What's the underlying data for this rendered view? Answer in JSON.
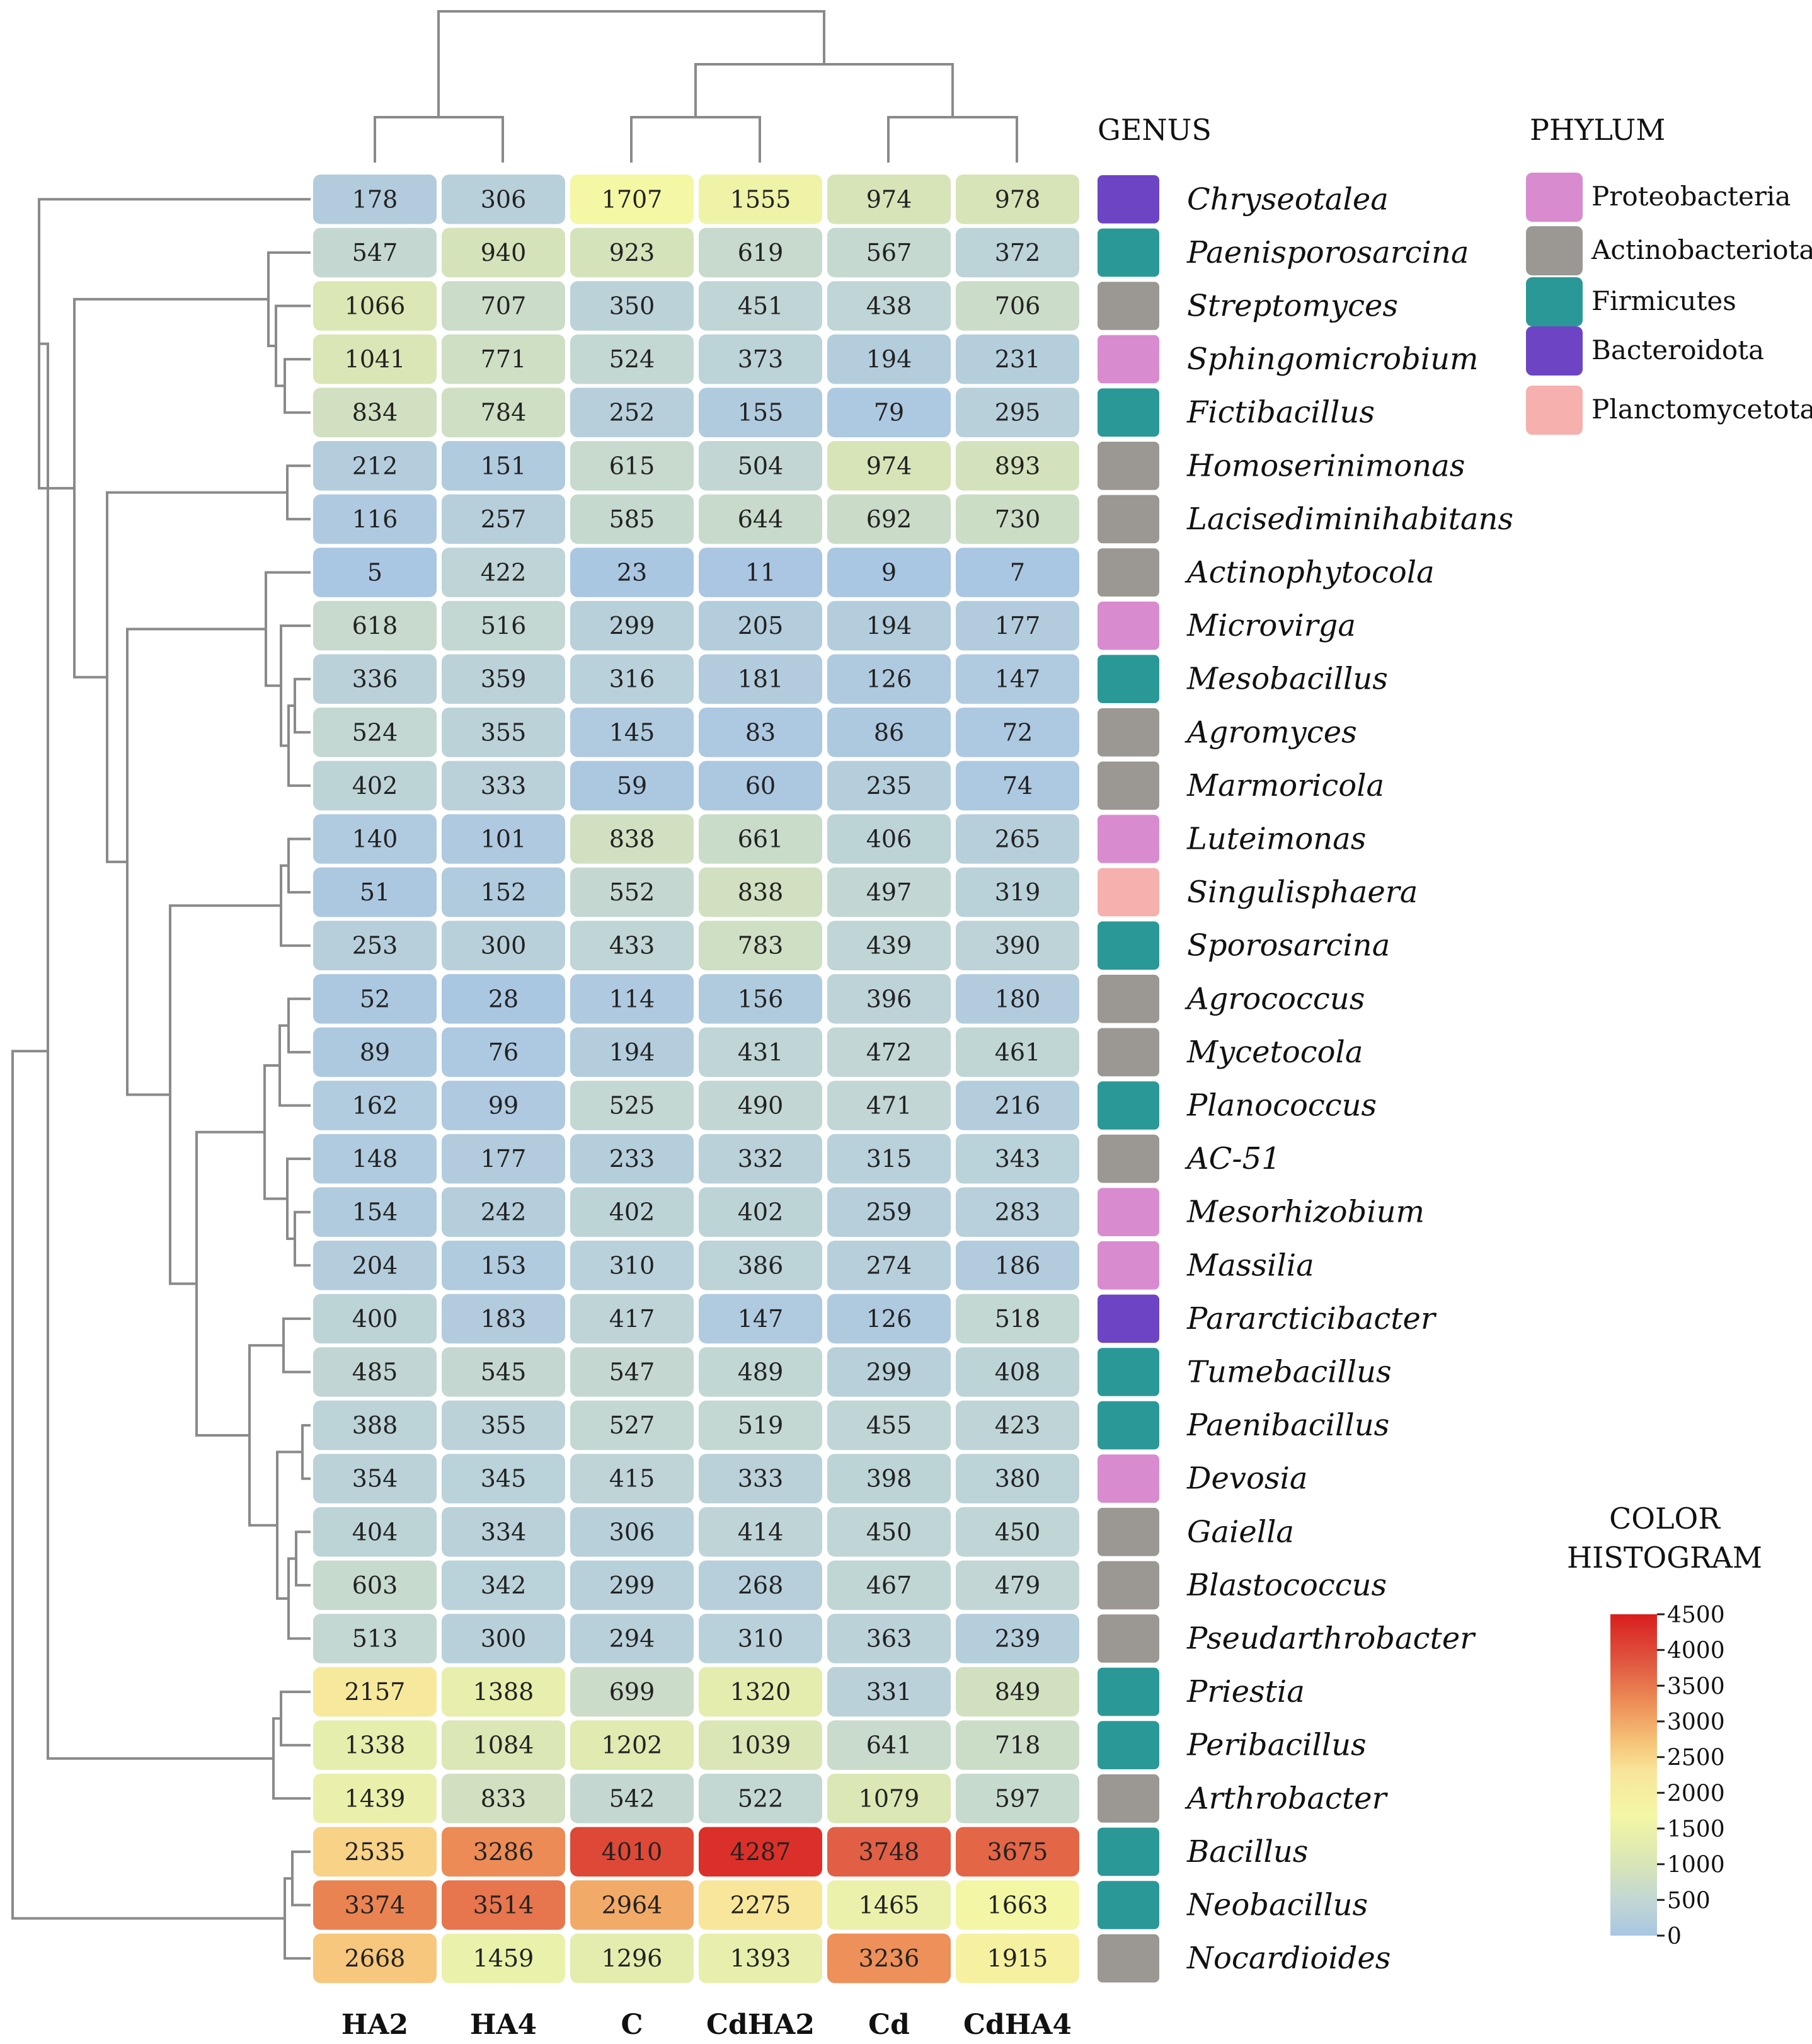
{
  "chart_data": {
    "type": "heatmap",
    "title": "",
    "columns": [
      "HA2",
      "HA4",
      "C",
      "CdHA2",
      "Cd",
      "CdHA4"
    ],
    "rows": [
      {
        "genus": "Chryseotalea",
        "phylum": "Bacteroidota",
        "values": [
          178,
          306,
          1707,
          1555,
          974,
          978
        ]
      },
      {
        "genus": "Paenisporosarcina",
        "phylum": "Firmicutes",
        "values": [
          547,
          940,
          923,
          619,
          567,
          372
        ]
      },
      {
        "genus": "Streptomyces",
        "phylum": "Actinobacteriota",
        "values": [
          1066,
          707,
          350,
          451,
          438,
          706
        ]
      },
      {
        "genus": "Sphingomicrobium",
        "phylum": "Proteobacteria",
        "values": [
          1041,
          771,
          524,
          373,
          194,
          231
        ]
      },
      {
        "genus": "Fictibacillus",
        "phylum": "Firmicutes",
        "values": [
          834,
          784,
          252,
          155,
          79,
          295
        ]
      },
      {
        "genus": "Homoserinimonas",
        "phylum": "Actinobacteriota",
        "values": [
          212,
          151,
          615,
          504,
          974,
          893
        ]
      },
      {
        "genus": "Lacisediminihabitans",
        "phylum": "Actinobacteriota",
        "values": [
          116,
          257,
          585,
          644,
          692,
          730
        ]
      },
      {
        "genus": "Actinophytocola",
        "phylum": "Actinobacteriota",
        "values": [
          5,
          422,
          23,
          11,
          9,
          7
        ]
      },
      {
        "genus": "Microvirga",
        "phylum": "Proteobacteria",
        "values": [
          618,
          516,
          299,
          205,
          194,
          177
        ]
      },
      {
        "genus": "Mesobacillus",
        "phylum": "Firmicutes",
        "values": [
          336,
          359,
          316,
          181,
          126,
          147
        ]
      },
      {
        "genus": "Agromyces",
        "phylum": "Actinobacteriota",
        "values": [
          524,
          355,
          145,
          83,
          86,
          72
        ]
      },
      {
        "genus": "Marmoricola",
        "phylum": "Actinobacteriota",
        "values": [
          402,
          333,
          59,
          60,
          235,
          74
        ]
      },
      {
        "genus": "Luteimonas",
        "phylum": "Proteobacteria",
        "values": [
          140,
          101,
          838,
          661,
          406,
          265
        ]
      },
      {
        "genus": "Singulisphaera",
        "phylum": "Planctomycetota",
        "values": [
          51,
          152,
          552,
          838,
          497,
          319
        ]
      },
      {
        "genus": "Sporosarcina",
        "phylum": "Firmicutes",
        "values": [
          253,
          300,
          433,
          783,
          439,
          390
        ]
      },
      {
        "genus": "Agrococcus",
        "phylum": "Actinobacteriota",
        "values": [
          52,
          28,
          114,
          156,
          396,
          180
        ]
      },
      {
        "genus": "Mycetocola",
        "phylum": "Actinobacteriota",
        "values": [
          89,
          76,
          194,
          431,
          472,
          461
        ]
      },
      {
        "genus": "Planococcus",
        "phylum": "Firmicutes",
        "values": [
          162,
          99,
          525,
          490,
          471,
          216
        ]
      },
      {
        "genus": "AC-51",
        "phylum": "Actinobacteriota",
        "values": [
          148,
          177,
          233,
          332,
          315,
          343
        ]
      },
      {
        "genus": "Mesorhizobium",
        "phylum": "Proteobacteria",
        "values": [
          154,
          242,
          402,
          402,
          259,
          283
        ]
      },
      {
        "genus": "Massilia",
        "phylum": "Proteobacteria",
        "values": [
          204,
          153,
          310,
          386,
          274,
          186
        ]
      },
      {
        "genus": "Pararcticibacter",
        "phylum": "Bacteroidota",
        "values": [
          400,
          183,
          417,
          147,
          126,
          518
        ]
      },
      {
        "genus": "Tumebacillus",
        "phylum": "Firmicutes",
        "values": [
          485,
          545,
          547,
          489,
          299,
          408
        ]
      },
      {
        "genus": "Paenibacillus",
        "phylum": "Firmicutes",
        "values": [
          388,
          355,
          527,
          519,
          455,
          423
        ]
      },
      {
        "genus": "Devosia",
        "phylum": "Proteobacteria",
        "values": [
          354,
          345,
          415,
          333,
          398,
          380
        ]
      },
      {
        "genus": "Gaiella",
        "phylum": "Actinobacteriota",
        "values": [
          404,
          334,
          306,
          414,
          450,
          450
        ]
      },
      {
        "genus": "Blastococcus",
        "phylum": "Actinobacteriota",
        "values": [
          603,
          342,
          299,
          268,
          467,
          479
        ]
      },
      {
        "genus": "Pseudarthrobacter",
        "phylum": "Actinobacteriota",
        "values": [
          513,
          300,
          294,
          310,
          363,
          239
        ]
      },
      {
        "genus": "Priestia",
        "phylum": "Firmicutes",
        "values": [
          2157,
          1388,
          699,
          1320,
          331,
          849
        ]
      },
      {
        "genus": "Peribacillus",
        "phylum": "Firmicutes",
        "values": [
          1338,
          1084,
          1202,
          1039,
          641,
          718
        ]
      },
      {
        "genus": "Arthrobacter",
        "phylum": "Actinobacteriota",
        "values": [
          1439,
          833,
          542,
          522,
          1079,
          597
        ]
      },
      {
        "genus": "Bacillus",
        "phylum": "Firmicutes",
        "values": [
          2535,
          3286,
          4010,
          4287,
          3748,
          3675
        ]
      },
      {
        "genus": "Neobacillus",
        "phylum": "Firmicutes",
        "values": [
          3374,
          3514,
          2964,
          2275,
          1465,
          1663
        ]
      },
      {
        "genus": "Nocardioides",
        "phylum": "Actinobacteriota",
        "values": [
          2668,
          1459,
          1296,
          1393,
          3236,
          1915
        ]
      }
    ],
    "genus_header": "GENUS",
    "phylum_header": "PHYLUM",
    "phyla": [
      {
        "name": "Proteobacteria",
        "color": "#d98bd0"
      },
      {
        "name": "Actinobacteriota",
        "color": "#9b9894"
      },
      {
        "name": "Firmicutes",
        "color": "#2b9898"
      },
      {
        "name": "Bacteroidota",
        "color": "#6d45c4"
      },
      {
        "name": "Planctomycetota",
        "color": "#f6b0ae"
      }
    ],
    "colorbar": {
      "title_line1": "COLOR",
      "title_line2": "HISTOGRAM",
      "range": [
        0,
        4500
      ],
      "ticks": [
        "4500",
        "4000",
        "3500",
        "3000",
        "2500",
        "2000",
        "1500",
        "1000",
        "500",
        "0"
      ],
      "stops": [
        {
          "v": 0,
          "color": "#a9c6e3"
        },
        {
          "v": 500,
          "color": "#c2d7d4"
        },
        {
          "v": 1000,
          "color": "#d8e5b6"
        },
        {
          "v": 1700,
          "color": "#f4f7a4"
        },
        {
          "v": 2300,
          "color": "#f8e59a"
        },
        {
          "v": 2700,
          "color": "#f6c479"
        },
        {
          "v": 3300,
          "color": "#ec8a55"
        },
        {
          "v": 3800,
          "color": "#e05a42"
        },
        {
          "v": 4500,
          "color": "#d91e1e"
        }
      ]
    }
  }
}
